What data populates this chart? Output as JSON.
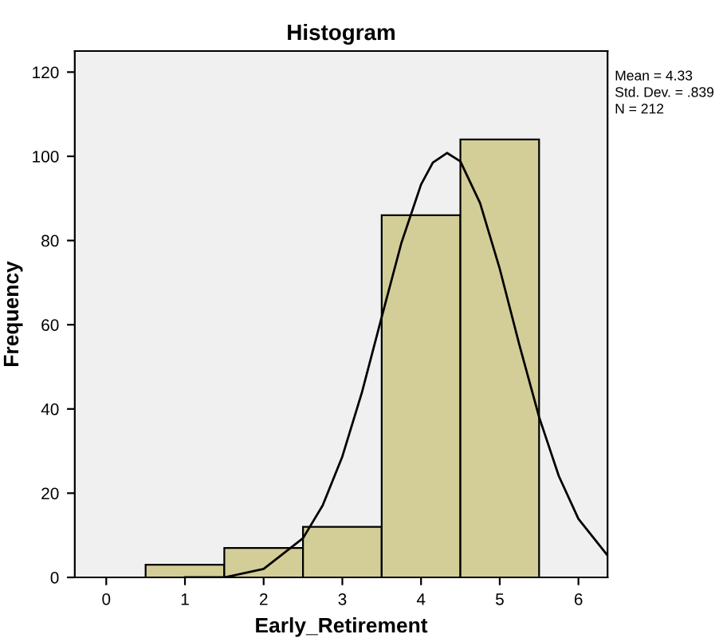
{
  "chart_data": {
    "type": "histogram",
    "title": "Histogram",
    "xlabel": "Early_Retirement",
    "ylabel": "Frequency",
    "bins": [
      0.5,
      1.5,
      2.5,
      3.5,
      4.5,
      5.5
    ],
    "values": [
      3,
      7,
      12,
      86,
      104
    ],
    "color": "#d3ce97",
    "series": [
      {
        "type": "line",
        "color": "#000000",
        "x": [
          1.0,
          1.5,
          2,
          2.5,
          2.75,
          3,
          3.25,
          3.5,
          3.75,
          4,
          4.15,
          4.33,
          4.5,
          4.75,
          5,
          5.25,
          5.5,
          5.75,
          6,
          6.37
        ],
        "values": [
          0,
          0,
          2,
          9.3,
          17.1,
          28.7,
          44.0,
          61.8,
          79.4,
          93.3,
          98.5,
          100.8,
          98.8,
          88.9,
          73.3,
          55.2,
          38.1,
          24.1,
          13.9,
          5.2
        ]
      }
    ],
    "xlim": [
      -0.4,
      6.37
    ],
    "xticks": [
      0,
      1,
      2,
      3,
      4,
      5,
      6
    ],
    "ylim": [
      0,
      125
    ],
    "yticks": [
      0,
      20,
      40,
      60,
      80,
      100,
      120
    ],
    "grid": false,
    "legend": false,
    "marker": "none",
    "line_style": "solid",
    "annotations": [
      "Mean = 4.33",
      "Std. Dev. = .839",
      "N = 212"
    ]
  }
}
